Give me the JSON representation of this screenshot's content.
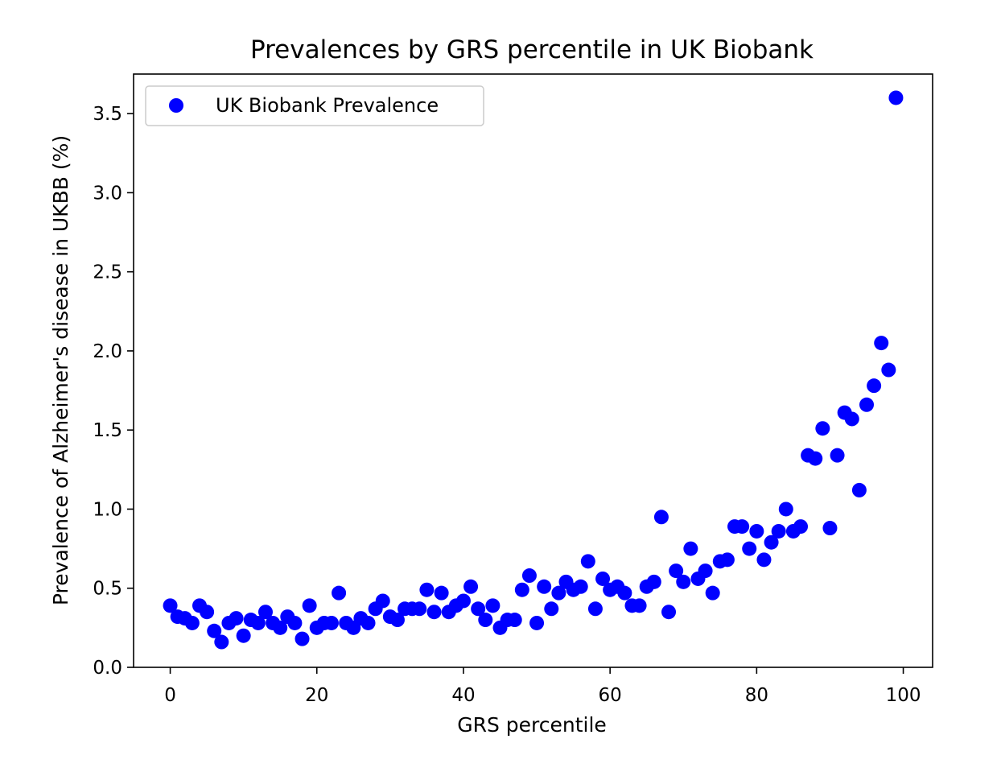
{
  "chart_data": {
    "type": "scatter",
    "title": "Prevalences by GRS percentile in UK Biobank",
    "xlabel": "GRS percentile",
    "ylabel": "Prevalence of Alzheimer's disease in UKBB (%)",
    "xlim": [
      -5,
      104
    ],
    "ylim": [
      0,
      3.75
    ],
    "x_ticks": [
      0,
      20,
      40,
      60,
      80,
      100
    ],
    "y_ticks": [
      0.0,
      0.5,
      1.0,
      1.5,
      2.0,
      2.5,
      3.0,
      3.5
    ],
    "grid": false,
    "legend": {
      "placement": "top-left",
      "entries": [
        "UK Biobank Prevalence"
      ]
    },
    "series": [
      {
        "name": "UK Biobank Prevalence",
        "color": "#0000ff",
        "x": [
          0,
          1,
          2,
          3,
          4,
          5,
          6,
          7,
          8,
          9,
          10,
          11,
          12,
          13,
          14,
          15,
          16,
          17,
          18,
          19,
          20,
          21,
          22,
          23,
          24,
          25,
          26,
          27,
          28,
          29,
          30,
          31,
          32,
          33,
          34,
          35,
          36,
          37,
          38,
          39,
          40,
          41,
          42,
          43,
          44,
          45,
          46,
          47,
          48,
          49,
          50,
          51,
          52,
          53,
          54,
          55,
          56,
          57,
          58,
          59,
          60,
          61,
          62,
          63,
          64,
          65,
          66,
          67,
          68,
          69,
          70,
          71,
          72,
          73,
          74,
          75,
          76,
          77,
          78,
          79,
          80,
          81,
          82,
          83,
          84,
          85,
          86,
          87,
          88,
          89,
          90,
          91,
          92,
          93,
          94,
          95,
          96,
          97,
          98,
          99
        ],
        "y": [
          0.39,
          0.32,
          0.31,
          0.28,
          0.39,
          0.35,
          0.23,
          0.16,
          0.28,
          0.31,
          0.2,
          0.3,
          0.28,
          0.35,
          0.28,
          0.25,
          0.32,
          0.28,
          0.18,
          0.39,
          0.25,
          0.28,
          0.28,
          0.47,
          0.28,
          0.25,
          0.31,
          0.28,
          0.37,
          0.42,
          0.32,
          0.3,
          0.37,
          0.37,
          0.37,
          0.49,
          0.35,
          0.47,
          0.35,
          0.39,
          0.42,
          0.51,
          0.37,
          0.3,
          0.39,
          0.25,
          0.3,
          0.3,
          0.49,
          0.58,
          0.28,
          0.51,
          0.37,
          0.47,
          0.54,
          0.49,
          0.51,
          0.67,
          0.37,
          0.56,
          0.49,
          0.51,
          0.47,
          0.39,
          0.39,
          0.51,
          0.54,
          0.95,
          0.35,
          0.61,
          0.54,
          0.75,
          0.56,
          0.61,
          0.47,
          0.67,
          0.68,
          0.89,
          0.89,
          0.75,
          0.86,
          0.68,
          0.79,
          0.86,
          1.0,
          0.86,
          0.89,
          1.34,
          1.32,
          1.51,
          0.88,
          1.34,
          1.61,
          1.57,
          1.12,
          1.66,
          1.78,
          2.05,
          1.88,
          3.6
        ]
      }
    ]
  }
}
